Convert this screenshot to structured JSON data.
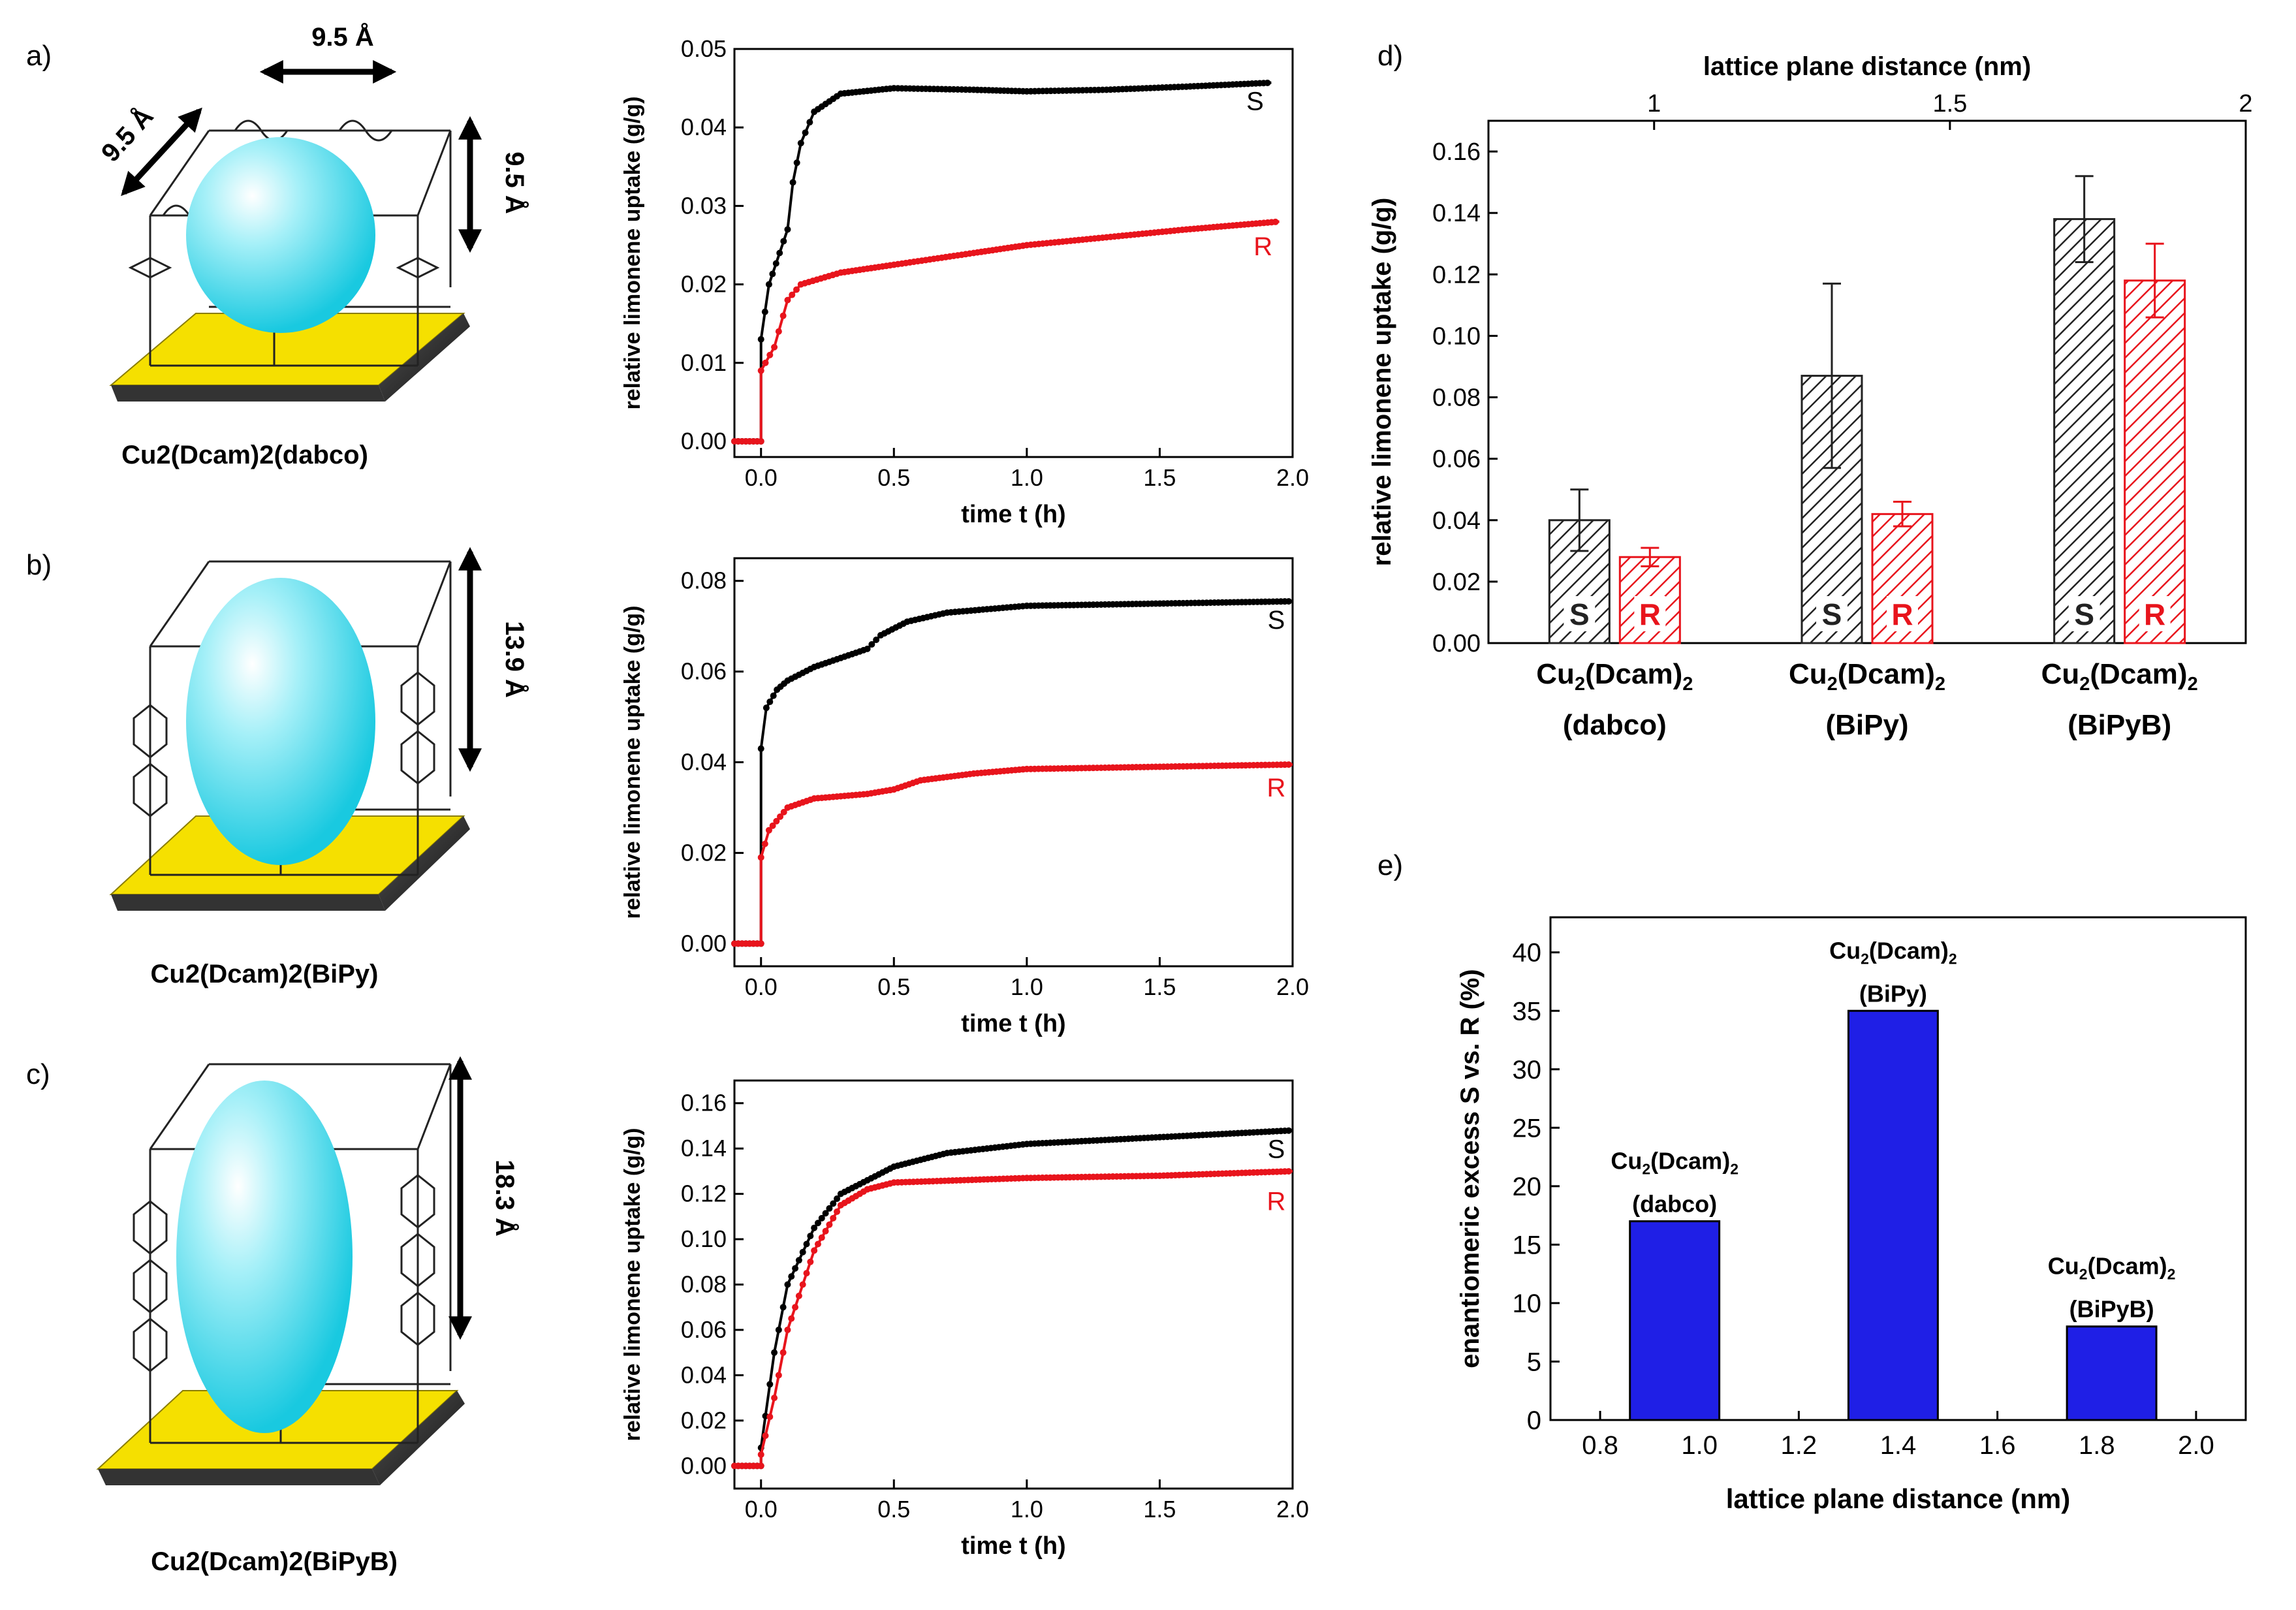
{
  "colors": {
    "s_series": "#000000",
    "r_series": "#e8141c",
    "ee_bar": "#1f1fe6",
    "ee_edge": "#000000",
    "sphere": "#39dbee",
    "substrate": "#f5e000"
  },
  "panel_letters": {
    "a": "a)",
    "b": "b)",
    "c": "c)",
    "d": "d)",
    "e": "e)"
  },
  "structures": [
    {
      "label": "Cu2(Dcam)2(dabco)",
      "dims": [
        "9.5 Å",
        "9.5 Å",
        "9.5 Å"
      ]
    },
    {
      "label": "Cu2(Dcam)2(BiPy)",
      "dims": [
        "13.9 Å"
      ]
    },
    {
      "label": "Cu2(Dcam)2(BiPyB)",
      "dims": [
        "18.3 Å"
      ]
    }
  ],
  "chart_data": [
    {
      "id": "a",
      "type": "scatter",
      "ylabel": "relative limonene uptake (g/g)",
      "xlabel": "time t (h)",
      "xlim": [
        -0.1,
        2.0
      ],
      "ylim": [
        -0.002,
        0.05
      ],
      "xticks": [
        "0.0",
        "0.5",
        "1.0",
        "1.5",
        "2.0"
      ],
      "yticks": [
        "0.00",
        "0.01",
        "0.02",
        "0.03",
        "0.04",
        "0.05"
      ],
      "series": [
        {
          "name": "S",
          "points": [
            [
              -0.1,
              0
            ],
            [
              0,
              0
            ],
            [
              0,
              0.013
            ],
            [
              0.03,
              0.02
            ],
            [
              0.07,
              0.024
            ],
            [
              0.1,
              0.027
            ],
            [
              0.12,
              0.033
            ],
            [
              0.15,
              0.038
            ],
            [
              0.2,
              0.042
            ],
            [
              0.3,
              0.0443
            ],
            [
              0.5,
              0.045
            ],
            [
              0.8,
              0.0448
            ],
            [
              1.0,
              0.0446
            ],
            [
              1.3,
              0.0448
            ],
            [
              1.6,
              0.0452
            ],
            [
              1.92,
              0.0457
            ]
          ]
        },
        {
          "name": "R",
          "points": [
            [
              -0.1,
              0
            ],
            [
              0,
              0
            ],
            [
              0,
              0.009
            ],
            [
              0.05,
              0.012
            ],
            [
              0.1,
              0.018
            ],
            [
              0.15,
              0.02
            ],
            [
              0.3,
              0.0215
            ],
            [
              0.5,
              0.0225
            ],
            [
              0.8,
              0.024
            ],
            [
              1.0,
              0.025
            ],
            [
              1.3,
              0.026
            ],
            [
              1.6,
              0.027
            ],
            [
              1.95,
              0.028
            ]
          ]
        }
      ]
    },
    {
      "id": "b",
      "type": "scatter",
      "ylabel": "relative limonene uptake (g/g)",
      "xlabel": "time t (h)",
      "xlim": [
        -0.1,
        2.0
      ],
      "ylim": [
        -0.005,
        0.085
      ],
      "xticks": [
        "0.0",
        "0.5",
        "1.0",
        "1.5",
        "2.0"
      ],
      "yticks": [
        "0.00",
        "0.02",
        "0.04",
        "0.06",
        "0.08"
      ],
      "series": [
        {
          "name": "S",
          "points": [
            [
              -0.1,
              0
            ],
            [
              0,
              0
            ],
            [
              0,
              0.043
            ],
            [
              0.02,
              0.052
            ],
            [
              0.06,
              0.056
            ],
            [
              0.1,
              0.058
            ],
            [
              0.2,
              0.061
            ],
            [
              0.3,
              0.063
            ],
            [
              0.4,
              0.065
            ],
            [
              0.45,
              0.068
            ],
            [
              0.55,
              0.071
            ],
            [
              0.7,
              0.073
            ],
            [
              1.0,
              0.0745
            ],
            [
              1.5,
              0.075
            ],
            [
              2.0,
              0.0755
            ]
          ]
        },
        {
          "name": "R",
          "points": [
            [
              -0.1,
              0
            ],
            [
              0,
              0
            ],
            [
              0,
              0.019
            ],
            [
              0.03,
              0.025
            ],
            [
              0.1,
              0.03
            ],
            [
              0.2,
              0.032
            ],
            [
              0.4,
              0.033
            ],
            [
              0.5,
              0.034
            ],
            [
              0.6,
              0.036
            ],
            [
              0.8,
              0.0375
            ],
            [
              1.0,
              0.0385
            ],
            [
              1.5,
              0.039
            ],
            [
              2.0,
              0.0395
            ]
          ]
        }
      ]
    },
    {
      "id": "c",
      "type": "scatter",
      "ylabel": "relative limonene uptake (g/g)",
      "xlabel": "time t (h)",
      "xlim": [
        -0.1,
        2.0
      ],
      "ylim": [
        -0.01,
        0.17
      ],
      "xticks": [
        "0.0",
        "0.5",
        "1.0",
        "1.5",
        "2.0"
      ],
      "yticks": [
        "0.00",
        "0.02",
        "0.04",
        "0.06",
        "0.08",
        "0.10",
        "0.12",
        "0.14",
        "0.16"
      ],
      "series": [
        {
          "name": "S",
          "points": [
            [
              -0.1,
              0
            ],
            [
              0,
              0
            ],
            [
              0,
              0.008
            ],
            [
              0.05,
              0.05
            ],
            [
              0.1,
              0.08
            ],
            [
              0.2,
              0.105
            ],
            [
              0.3,
              0.12
            ],
            [
              0.5,
              0.132
            ],
            [
              0.7,
              0.138
            ],
            [
              1.0,
              0.142
            ],
            [
              1.5,
              0.145
            ],
            [
              2.0,
              0.148
            ]
          ]
        },
        {
          "name": "R",
          "points": [
            [
              -0.1,
              0
            ],
            [
              0,
              0
            ],
            [
              0,
              0.005
            ],
            [
              0.05,
              0.03
            ],
            [
              0.1,
              0.06
            ],
            [
              0.2,
              0.095
            ],
            [
              0.3,
              0.115
            ],
            [
              0.4,
              0.122
            ],
            [
              0.5,
              0.125
            ],
            [
              1.0,
              0.127
            ],
            [
              1.5,
              0.128
            ],
            [
              2.0,
              0.13
            ]
          ]
        }
      ]
    },
    {
      "id": "d",
      "type": "bar",
      "ylabel": "relative limonene uptake (g/g)",
      "top_xlabel": "lattice plane distance (nm)",
      "top_xlim": [
        0.72,
        2.0
      ],
      "top_xticks": [
        "1",
        "1.5",
        "2"
      ],
      "ylim": [
        0,
        0.17
      ],
      "yticks": [
        "0.00",
        "0.02",
        "0.04",
        "0.06",
        "0.08",
        "0.10",
        "0.12",
        "0.14",
        "0.16"
      ],
      "categories": [
        {
          "line1": "Cu2(Dcam)2",
          "line2": "(dabco)"
        },
        {
          "line1": "Cu2(Dcam)2",
          "line2": "(BiPy)"
        },
        {
          "line1": "Cu2(Dcam)2",
          "line2": "(BiPyB)"
        }
      ],
      "series": [
        {
          "name": "S",
          "values": [
            0.04,
            0.087,
            0.138
          ],
          "errors": [
            0.01,
            0.03,
            0.014
          ]
        },
        {
          "name": "R",
          "values": [
            0.028,
            0.042,
            0.118
          ],
          "errors": [
            0.003,
            0.004,
            0.012
          ]
        }
      ]
    },
    {
      "id": "e",
      "type": "bar",
      "ylabel": "enantiomeric excess S vs. R (%)",
      "xlabel": "lattice plane distance (nm)",
      "xlim": [
        0.7,
        2.1
      ],
      "ylim": [
        0,
        43
      ],
      "xticks": [
        "0.8",
        "1.0",
        "1.2",
        "1.4",
        "1.6",
        "1.8",
        "2.0"
      ],
      "yticks": [
        "0",
        "5",
        "10",
        "15",
        "20",
        "25",
        "30",
        "35",
        "40"
      ],
      "bars": [
        {
          "x": 0.95,
          "value": 17,
          "line1": "Cu2(Dcam)2",
          "line2": "(dabco)"
        },
        {
          "x": 1.39,
          "value": 35,
          "line1": "Cu2(Dcam)2",
          "line2": "(BiPy)"
        },
        {
          "x": 1.83,
          "value": 8,
          "line1": "Cu2(Dcam)2",
          "line2": "(BiPyB)"
        }
      ]
    }
  ]
}
